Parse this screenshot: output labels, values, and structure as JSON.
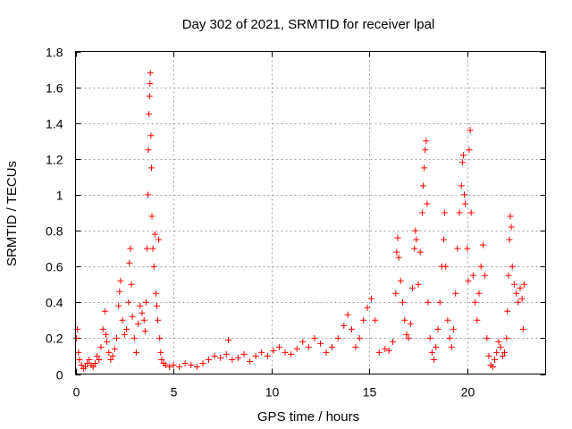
{
  "chart_data": {
    "type": "scatter",
    "title": "Day 302 of 2021, SRMTID for receiver lpal",
    "xlabel": "GPS time / hours",
    "ylabel": "SRMTID / TECUs",
    "xlim": [
      0,
      24
    ],
    "ylim": [
      0,
      1.8
    ],
    "grid": true,
    "marker": "+",
    "marker_color": "#ff0000",
    "xticks": [
      0,
      5,
      10,
      15,
      20
    ],
    "xtick_labels": [
      "0",
      "5",
      "10",
      "15",
      "20"
    ],
    "yticks": [
      0,
      0.2,
      0.4,
      0.6,
      0.8,
      1.0,
      1.2,
      1.4,
      1.6,
      1.8
    ],
    "ytick_labels": [
      "0",
      "0.2",
      "0.4",
      "0.6",
      "0.8",
      "1",
      "1.2",
      "1.4",
      "1.6",
      "1.8"
    ],
    "series": [
      {
        "name": "SRMTID",
        "points": [
          [
            0.05,
            0.2
          ],
          [
            0.1,
            0.25
          ],
          [
            0.15,
            0.12
          ],
          [
            0.2,
            0.08
          ],
          [
            0.3,
            0.05
          ],
          [
            0.4,
            0.03
          ],
          [
            0.5,
            0.04
          ],
          [
            0.6,
            0.06
          ],
          [
            0.7,
            0.08
          ],
          [
            0.8,
            0.05
          ],
          [
            0.9,
            0.04
          ],
          [
            1.0,
            0.06
          ],
          [
            1.1,
            0.1
          ],
          [
            1.2,
            0.08
          ],
          [
            1.3,
            0.15
          ],
          [
            1.4,
            0.25
          ],
          [
            1.5,
            0.35
          ],
          [
            1.55,
            0.22
          ],
          [
            1.6,
            0.18
          ],
          [
            1.7,
            0.12
          ],
          [
            1.8,
            0.08
          ],
          [
            1.9,
            0.1
          ],
          [
            2.0,
            0.14
          ],
          [
            2.1,
            0.2
          ],
          [
            2.2,
            0.38
          ],
          [
            2.25,
            0.46
          ],
          [
            2.3,
            0.52
          ],
          [
            2.4,
            0.3
          ],
          [
            2.5,
            0.22
          ],
          [
            2.6,
            0.25
          ],
          [
            2.7,
            0.4
          ],
          [
            2.75,
            0.62
          ],
          [
            2.8,
            0.7
          ],
          [
            2.85,
            0.5
          ],
          [
            2.9,
            0.32
          ],
          [
            3.0,
            0.2
          ],
          [
            3.1,
            0.12
          ],
          [
            3.2,
            0.28
          ],
          [
            3.3,
            0.38
          ],
          [
            3.4,
            0.34
          ],
          [
            3.5,
            0.3
          ],
          [
            3.55,
            0.24
          ],
          [
            3.6,
            0.4
          ],
          [
            3.65,
            0.7
          ],
          [
            3.7,
            1.0
          ],
          [
            3.72,
            1.25
          ],
          [
            3.75,
            1.45
          ],
          [
            3.78,
            1.55
          ],
          [
            3.8,
            1.62
          ],
          [
            3.82,
            1.68
          ],
          [
            3.85,
            1.33
          ],
          [
            3.88,
            1.15
          ],
          [
            3.9,
            0.88
          ],
          [
            3.95,
            0.7
          ],
          [
            4.0,
            0.6
          ],
          [
            4.05,
            0.78
          ],
          [
            4.1,
            0.45
          ],
          [
            4.15,
            0.38
          ],
          [
            4.2,
            0.3
          ],
          [
            4.25,
            0.75
          ],
          [
            4.3,
            0.2
          ],
          [
            4.35,
            0.12
          ],
          [
            4.4,
            0.08
          ],
          [
            4.5,
            0.06
          ],
          [
            4.6,
            0.05
          ],
          [
            4.8,
            0.04
          ],
          [
            5.0,
            0.05
          ],
          [
            5.3,
            0.04
          ],
          [
            5.6,
            0.06
          ],
          [
            5.9,
            0.05
          ],
          [
            6.2,
            0.04
          ],
          [
            6.5,
            0.06
          ],
          [
            6.8,
            0.08
          ],
          [
            7.1,
            0.1
          ],
          [
            7.4,
            0.09
          ],
          [
            7.7,
            0.11
          ],
          [
            7.8,
            0.19
          ],
          [
            8.0,
            0.08
          ],
          [
            8.3,
            0.09
          ],
          [
            8.6,
            0.11
          ],
          [
            8.9,
            0.07
          ],
          [
            9.2,
            0.1
          ],
          [
            9.5,
            0.12
          ],
          [
            9.8,
            0.1
          ],
          [
            10.1,
            0.13
          ],
          [
            10.4,
            0.15
          ],
          [
            10.7,
            0.12
          ],
          [
            11.0,
            0.11
          ],
          [
            11.3,
            0.14
          ],
          [
            11.6,
            0.18
          ],
          [
            11.9,
            0.15
          ],
          [
            12.2,
            0.2
          ],
          [
            12.5,
            0.17
          ],
          [
            12.8,
            0.12
          ],
          [
            13.1,
            0.15
          ],
          [
            13.4,
            0.2
          ],
          [
            13.7,
            0.27
          ],
          [
            13.9,
            0.33
          ],
          [
            14.1,
            0.25
          ],
          [
            14.3,
            0.15
          ],
          [
            14.5,
            0.2
          ],
          [
            14.7,
            0.3
          ],
          [
            14.9,
            0.37
          ],
          [
            15.1,
            0.42
          ],
          [
            15.3,
            0.3
          ],
          [
            15.5,
            0.12
          ],
          [
            15.8,
            0.14
          ],
          [
            16.0,
            0.13
          ],
          [
            16.2,
            0.18
          ],
          [
            16.35,
            0.45
          ],
          [
            16.4,
            0.68
          ],
          [
            16.45,
            0.76
          ],
          [
            16.5,
            0.65
          ],
          [
            16.6,
            0.52
          ],
          [
            16.7,
            0.4
          ],
          [
            16.8,
            0.3
          ],
          [
            16.9,
            0.22
          ],
          [
            17.0,
            0.2
          ],
          [
            17.1,
            0.28
          ],
          [
            17.2,
            0.48
          ],
          [
            17.3,
            0.7
          ],
          [
            17.35,
            0.8
          ],
          [
            17.4,
            0.75
          ],
          [
            17.5,
            0.5
          ],
          [
            17.6,
            0.68
          ],
          [
            17.7,
            0.9
          ],
          [
            17.75,
            1.05
          ],
          [
            17.8,
            1.15
          ],
          [
            17.85,
            1.25
          ],
          [
            17.9,
            1.3
          ],
          [
            17.95,
            0.95
          ],
          [
            18.0,
            0.4
          ],
          [
            18.1,
            0.2
          ],
          [
            18.2,
            0.12
          ],
          [
            18.3,
            0.08
          ],
          [
            18.4,
            0.15
          ],
          [
            18.5,
            0.25
          ],
          [
            18.6,
            0.4
          ],
          [
            18.7,
            0.6
          ],
          [
            18.8,
            0.75
          ],
          [
            18.85,
            0.9
          ],
          [
            18.9,
            0.6
          ],
          [
            19.0,
            0.3
          ],
          [
            19.1,
            0.2
          ],
          [
            19.2,
            0.15
          ],
          [
            19.3,
            0.25
          ],
          [
            19.4,
            0.45
          ],
          [
            19.5,
            0.7
          ],
          [
            19.6,
            0.9
          ],
          [
            19.7,
            1.05
          ],
          [
            19.75,
            1.18
          ],
          [
            19.8,
            1.22
          ],
          [
            19.85,
            1.0
          ],
          [
            19.9,
            0.95
          ],
          [
            20.0,
            0.7
          ],
          [
            20.05,
            0.52
          ],
          [
            20.1,
            1.25
          ],
          [
            20.15,
            1.36
          ],
          [
            20.2,
            0.9
          ],
          [
            20.3,
            0.55
          ],
          [
            20.4,
            0.4
          ],
          [
            20.5,
            0.3
          ],
          [
            20.6,
            0.45
          ],
          [
            20.7,
            0.6
          ],
          [
            20.8,
            0.72
          ],
          [
            20.9,
            0.55
          ],
          [
            21.0,
            0.2
          ],
          [
            21.1,
            0.1
          ],
          [
            21.2,
            0.05
          ],
          [
            21.3,
            0.04
          ],
          [
            21.4,
            0.08
          ],
          [
            21.5,
            0.12
          ],
          [
            21.6,
            0.18
          ],
          [
            21.7,
            0.15
          ],
          [
            21.8,
            0.1
          ],
          [
            21.9,
            0.12
          ],
          [
            22.0,
            0.2
          ],
          [
            22.05,
            0.35
          ],
          [
            22.1,
            0.55
          ],
          [
            22.15,
            0.75
          ],
          [
            22.2,
            0.88
          ],
          [
            22.25,
            0.82
          ],
          [
            22.3,
            0.6
          ],
          [
            22.4,
            0.5
          ],
          [
            22.5,
            0.45
          ],
          [
            22.6,
            0.4
          ],
          [
            22.7,
            0.48
          ],
          [
            22.8,
            0.42
          ],
          [
            22.85,
            0.25
          ],
          [
            22.9,
            0.5
          ]
        ]
      }
    ]
  }
}
